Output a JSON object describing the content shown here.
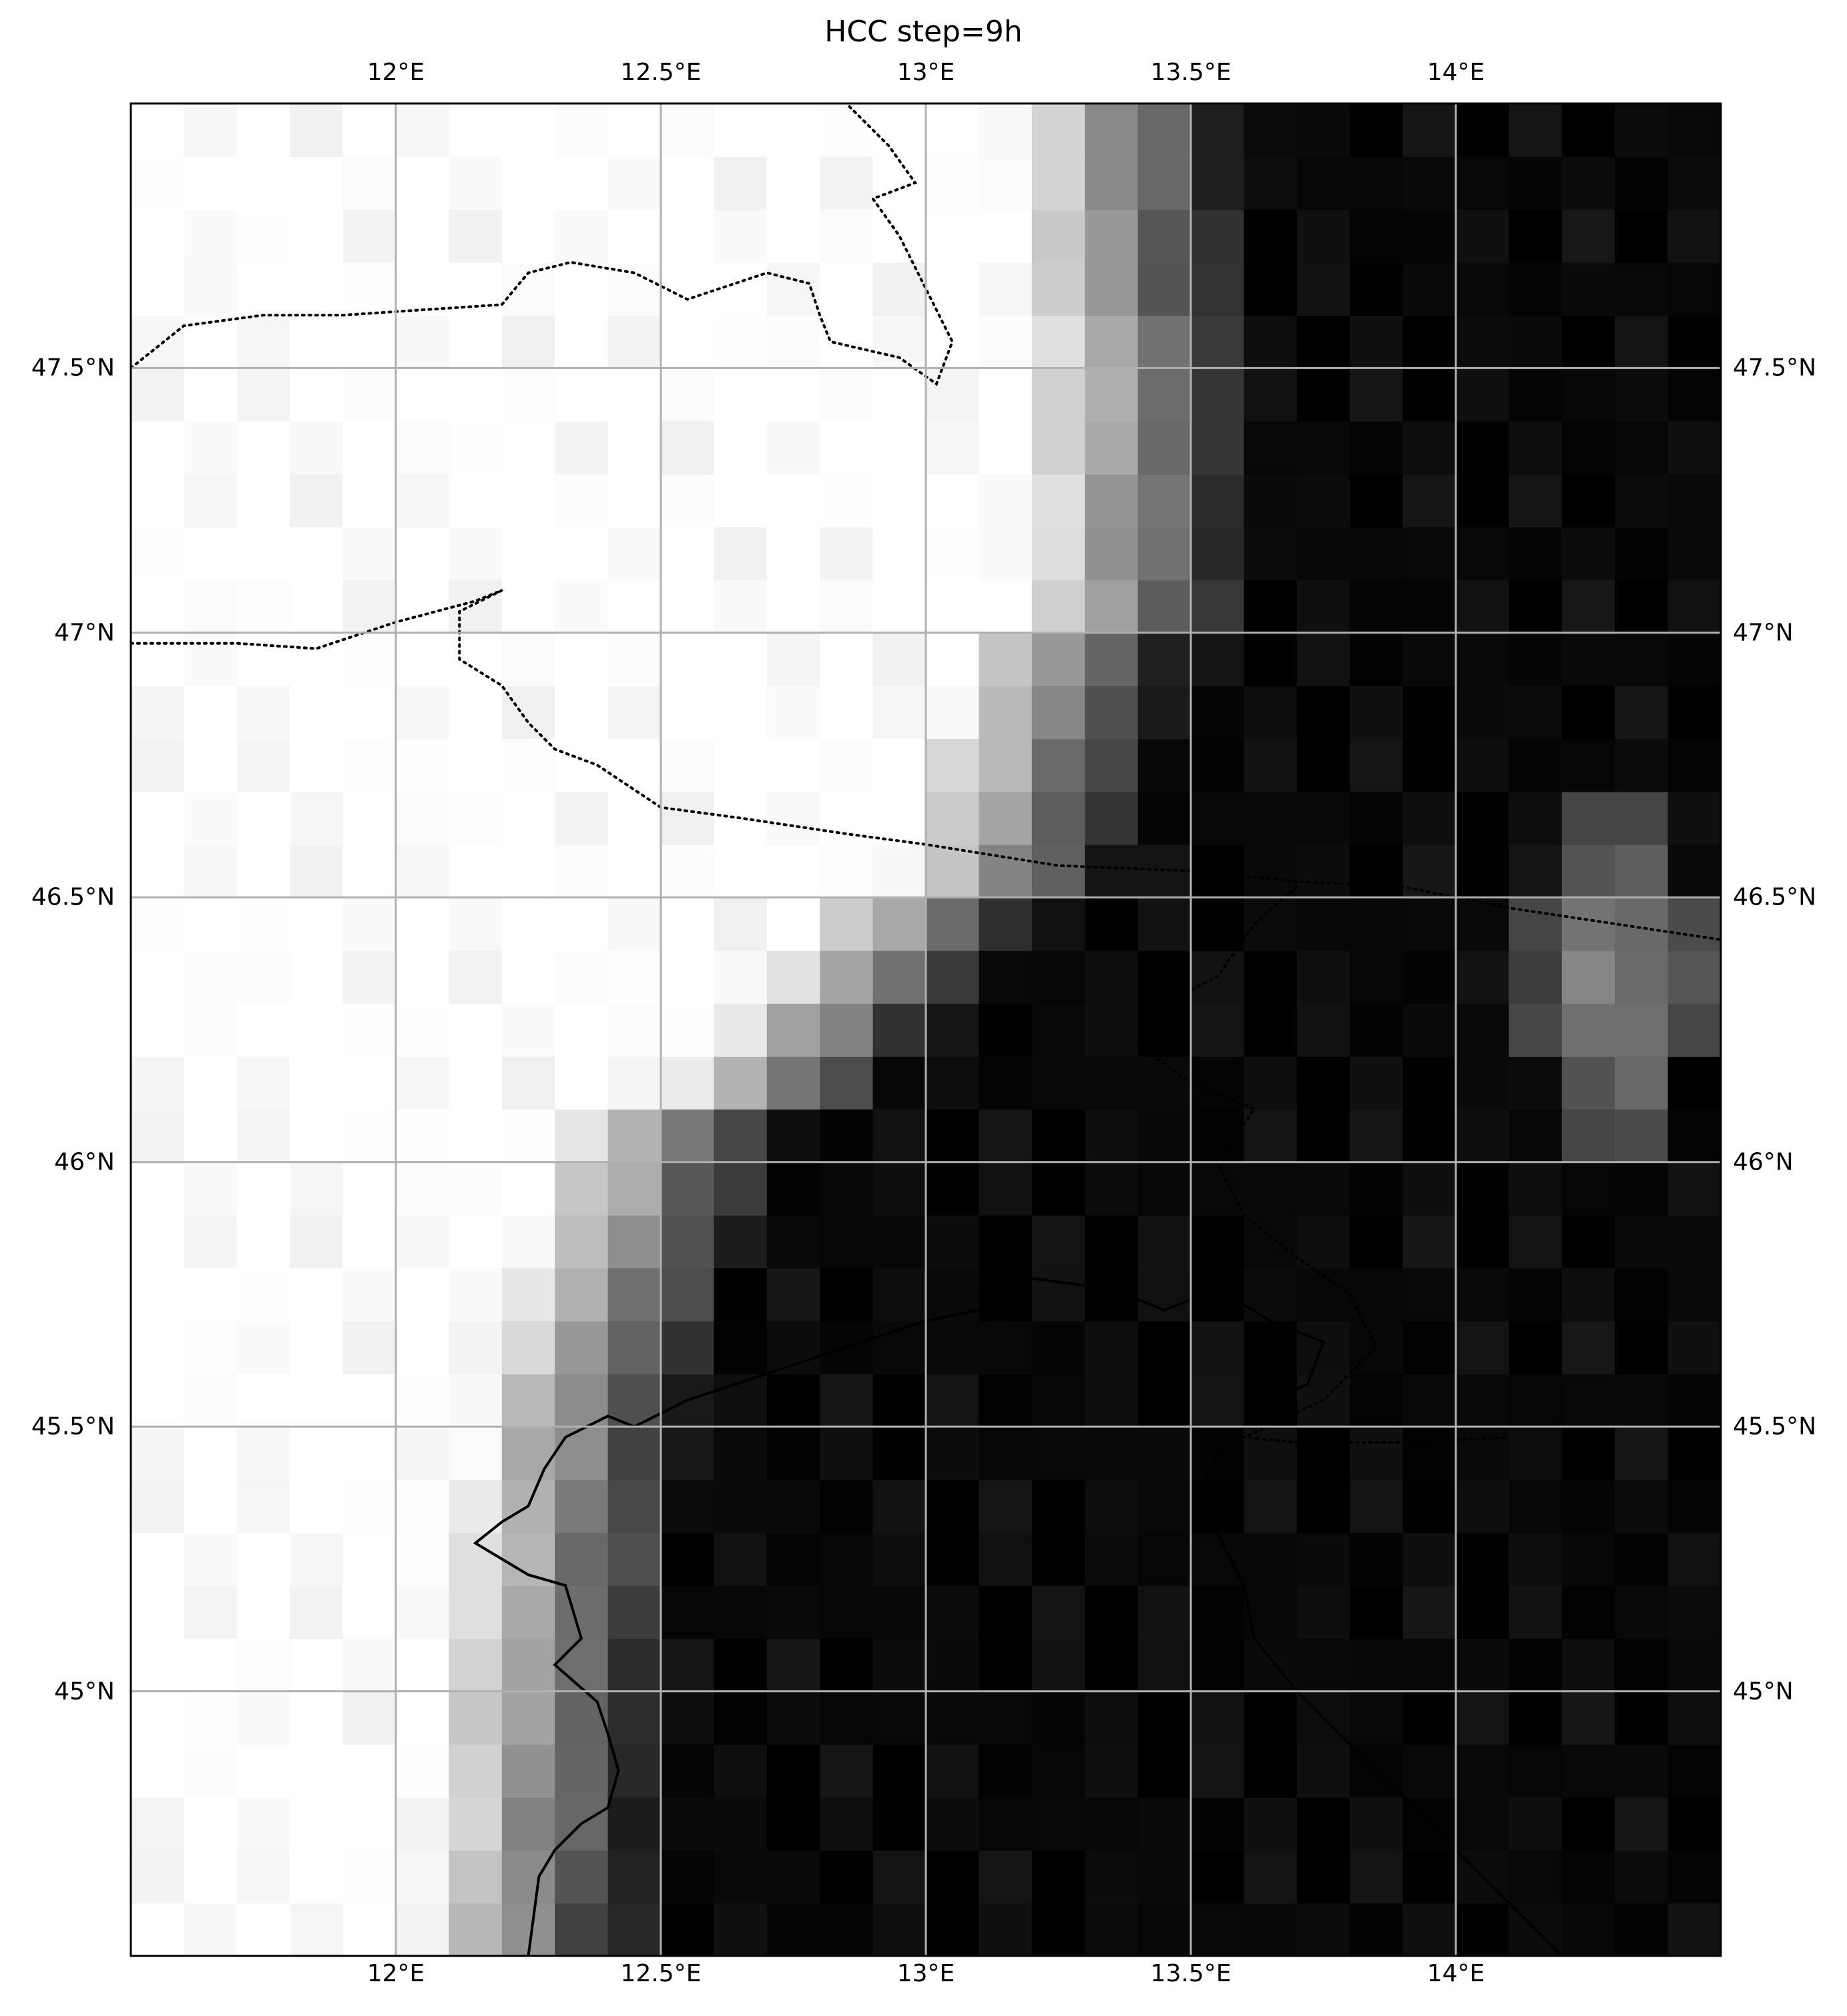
{
  "title": "HCC step=9h",
  "map": {
    "projection": "PlateCarree",
    "extent": {
      "lon_min": 11.5,
      "lon_max": 14.5,
      "lat_min": 44.5,
      "lat_max": 48.0
    },
    "colormap": "gray",
    "variable": "HCC",
    "step": "9h",
    "gridlines": true,
    "x_ticks": [
      {
        "lon": 12.0,
        "label": "12°E"
      },
      {
        "lon": 12.5,
        "label": "12.5°E"
      },
      {
        "lon": 13.0,
        "label": "13°E"
      },
      {
        "lon": 13.5,
        "label": "13.5°E"
      },
      {
        "lon": 14.0,
        "label": "14°E"
      }
    ],
    "y_ticks": [
      {
        "lat": 47.5,
        "label": "47.5°N"
      },
      {
        "lat": 47.0,
        "label": "47°N"
      },
      {
        "lat": 46.5,
        "label": "46.5°N"
      },
      {
        "lat": 46.0,
        "label": "46°N"
      },
      {
        "lat": 45.5,
        "label": "45.5°N"
      },
      {
        "lat": 45.0,
        "label": "45°N"
      }
    ],
    "colors": {
      "gridline": "#b0b0b0",
      "border": "#000000",
      "coastline": "#000000"
    }
  }
}
